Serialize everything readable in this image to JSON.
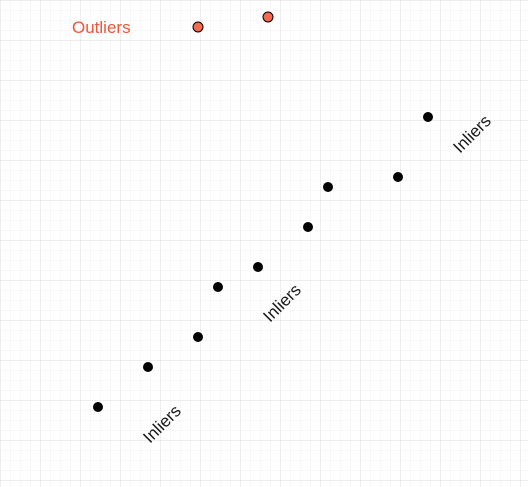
{
  "colors": {
    "background": "#ffffff",
    "grid_minor": "#eeeeee",
    "grid_major": "#dddddd",
    "inlier_fill": "#000000",
    "outlier_fill": "#f26b4f",
    "outlier_stroke": "#000000",
    "outlier_label": "#f0553a",
    "inlier_label": "#1a1a1a"
  },
  "labels": {
    "outliers": "Outliers",
    "inliers_top": "Inliers",
    "inliers_middle": "Inliers",
    "inliers_bottom": "Inliers"
  }
}
